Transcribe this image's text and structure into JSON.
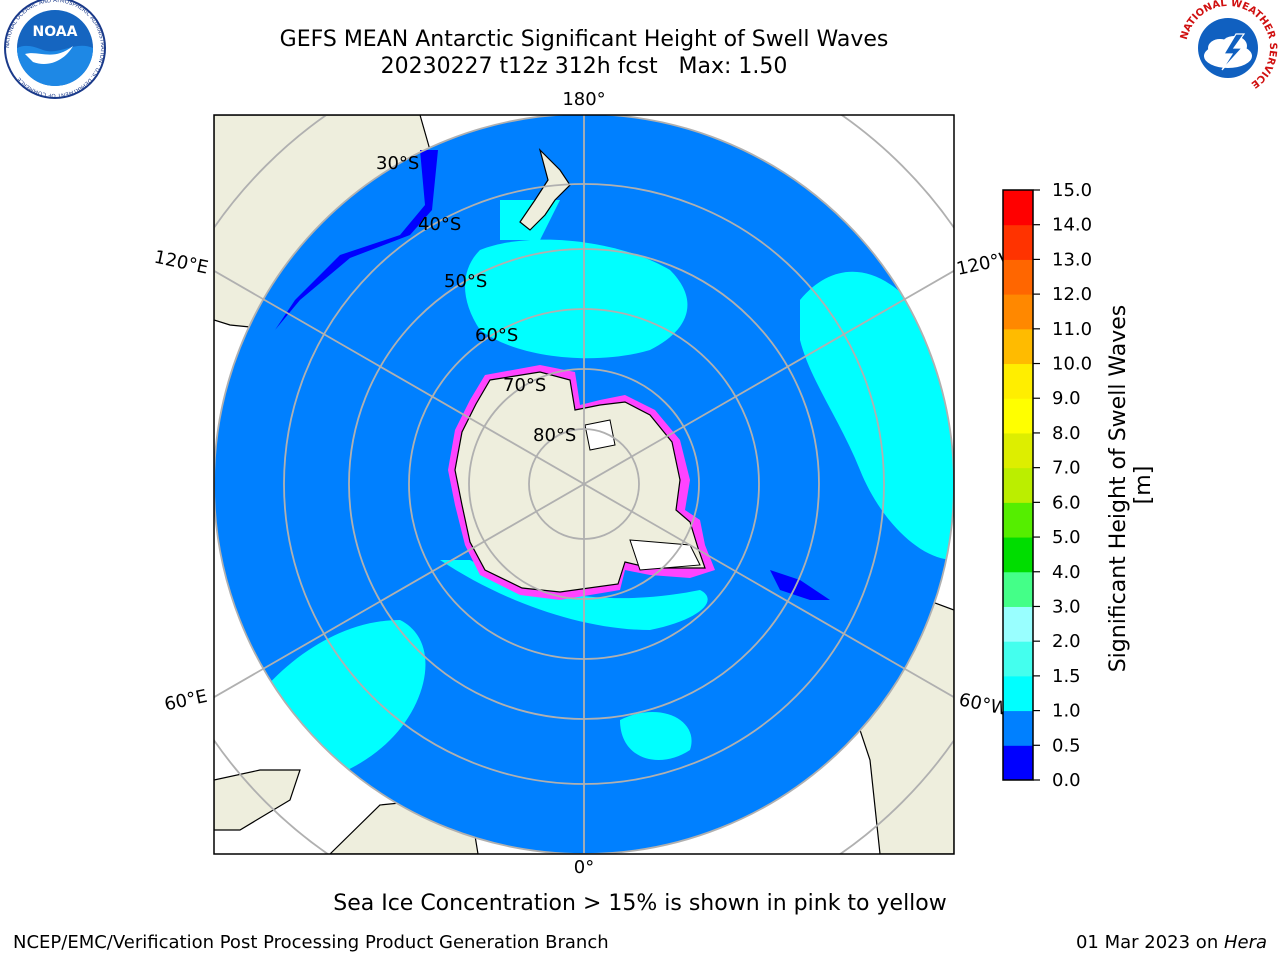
{
  "header": {
    "title": "GEFS MEAN Antarctic Significant Height of Swell Waves",
    "subtitle": "20230227 t12z 312h fcst   Max: 1.50",
    "logo_left": "NOAA",
    "logo_left_ring": "NATIONAL OCEANIC AND ATMOSPHERIC ADMINISTRATION · U.S. DEPARTMENT OF COMMERCE",
    "logo_right_ring": "NATIONAL WEATHER SERVICE"
  },
  "map": {
    "projection": "south-polar-stereographic",
    "lat_labels": [
      "30°S",
      "40°S",
      "50°S",
      "60°S",
      "70°S",
      "80°S"
    ],
    "lon_labels": {
      "top": "180°",
      "bottom": "0°",
      "upper_left": "120°E",
      "lower_left": "60°E",
      "upper_right": "120°W",
      "lower_right": "60°W"
    },
    "colors": {
      "ocean_deep": "#0080ff",
      "ocean_light": "#00ffff",
      "land": "#eeeedd",
      "coast_blue": "#0000ff",
      "ice_edge": "#ff44ff",
      "ice_white": "#ffffff",
      "grid": "#b0b0b0"
    }
  },
  "colorbar": {
    "label": "Significant Height of Swell Waves [m]",
    "ticks": [
      "0.0",
      "0.5",
      "1.0",
      "1.5",
      "2.0",
      "3.0",
      "4.0",
      "5.0",
      "6.0",
      "7.0",
      "8.0",
      "9.0",
      "10.0",
      "11.0",
      "12.0",
      "13.0",
      "14.0",
      "15.0"
    ],
    "colors": [
      "#0000ff",
      "#0080ff",
      "#00ffff",
      "#44ffee",
      "#99ffff",
      "#44ff88",
      "#00dd00",
      "#55ee00",
      "#bbee00",
      "#ddee00",
      "#ffff00",
      "#ffee00",
      "#ffbb00",
      "#ff8800",
      "#ff6600",
      "#ff3300",
      "#ff0000"
    ]
  },
  "footer": {
    "note": "Sea Ice Concentration > 15% is shown in pink to yellow",
    "credit": "NCEP/EMC/Verification Post Processing Product Generation Branch",
    "date": "01 Mar 2023 on ",
    "machine": "Hera"
  }
}
